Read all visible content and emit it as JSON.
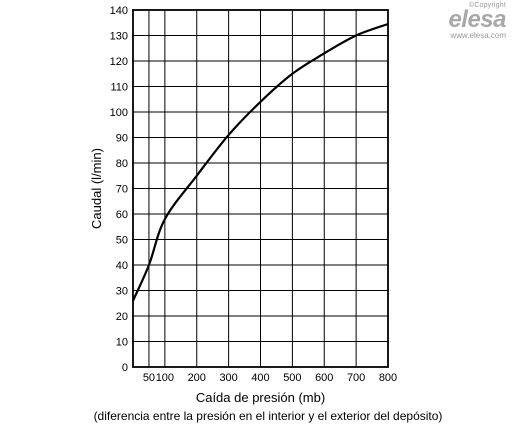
{
  "brand": {
    "copyright": "©Copyright",
    "name": "elesa",
    "url": "www.elesa.com"
  },
  "chart_data": {
    "type": "line",
    "xlabel": "Caída de presión (mb)",
    "xlabel_sub": "(diferencia entre la presión en el interior y el exterior del depósito)",
    "ylabel": "Caudal (l/min)",
    "xlim": [
      0,
      800
    ],
    "ylim": [
      0,
      140
    ],
    "xticks": [
      50,
      100,
      200,
      300,
      400,
      500,
      600,
      700,
      800
    ],
    "xtick_labels": [
      "50",
      "100",
      "200",
      "300",
      "400",
      "500",
      "600",
      "700",
      "800"
    ],
    "yticks": [
      0,
      10,
      20,
      30,
      40,
      50,
      60,
      70,
      80,
      90,
      100,
      110,
      120,
      130,
      140
    ],
    "grid": true,
    "series": [
      {
        "points": [
          [
            0,
            26
          ],
          [
            50,
            40
          ],
          [
            100,
            58
          ],
          [
            200,
            75
          ],
          [
            300,
            91
          ],
          [
            400,
            104
          ],
          [
            500,
            115
          ],
          [
            600,
            123
          ],
          [
            700,
            130
          ],
          [
            800,
            134.5
          ]
        ]
      }
    ]
  }
}
